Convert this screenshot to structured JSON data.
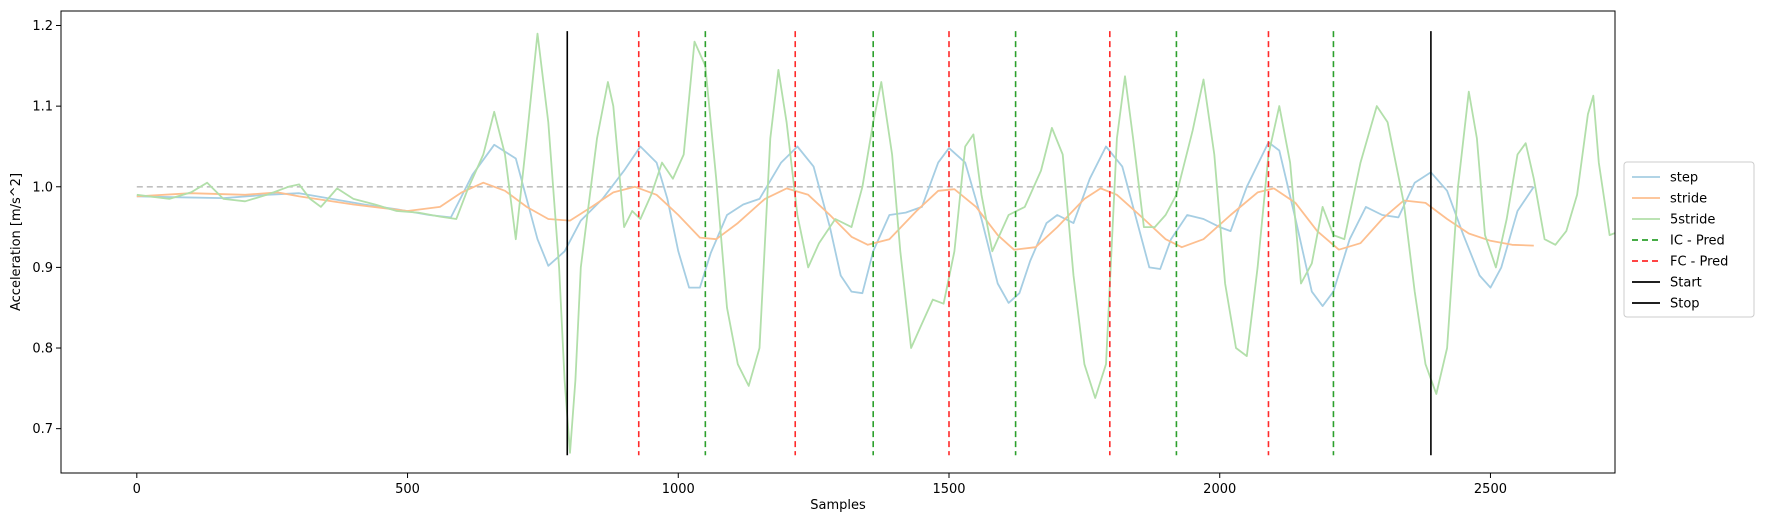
{
  "chart_data": {
    "type": "line",
    "xlabel": "Samples",
    "ylabel": "Acceleration [m/s^2]",
    "xlim": [
      -140,
      2730
    ],
    "ylim": [
      0.645,
      1.218
    ],
    "xticks": [
      0,
      500,
      1000,
      1500,
      2000,
      2500
    ],
    "yticks": [
      0.7,
      0.8,
      0.9,
      1.0,
      1.1,
      1.2
    ],
    "xtick_labels": [
      "0",
      "500",
      "1000",
      "1500",
      "2000",
      "2500"
    ],
    "ytick_labels": [
      "0.7",
      "0.8",
      "0.9",
      "1.0",
      "1.1",
      "1.2"
    ],
    "grid": false,
    "legend_position": "right",
    "reference_line": {
      "y": 1.0,
      "x_range": [
        0,
        2580
      ],
      "color": "#c0c0c0",
      "dashed": true
    },
    "series": [
      {
        "name": "step",
        "color": "#a6cee3",
        "points": [
          [
            0,
            0.988
          ],
          [
            80,
            0.987
          ],
          [
            160,
            0.986
          ],
          [
            240,
            0.99
          ],
          [
            300,
            0.992
          ],
          [
            360,
            0.985
          ],
          [
            420,
            0.978
          ],
          [
            480,
            0.972
          ],
          [
            540,
            0.965
          ],
          [
            580,
            0.962
          ],
          [
            620,
            1.015
          ],
          [
            660,
            1.052
          ],
          [
            700,
            1.035
          ],
          [
            740,
            0.935
          ],
          [
            760,
            0.902
          ],
          [
            790,
            0.92
          ],
          [
            820,
            0.958
          ],
          [
            860,
            0.985
          ],
          [
            900,
            1.02
          ],
          [
            930,
            1.05
          ],
          [
            960,
            1.03
          ],
          [
            980,
            0.985
          ],
          [
            1000,
            0.92
          ],
          [
            1020,
            0.875
          ],
          [
            1040,
            0.875
          ],
          [
            1060,
            0.918
          ],
          [
            1090,
            0.965
          ],
          [
            1120,
            0.978
          ],
          [
            1150,
            0.985
          ],
          [
            1190,
            1.03
          ],
          [
            1220,
            1.05
          ],
          [
            1250,
            1.025
          ],
          [
            1280,
            0.95
          ],
          [
            1300,
            0.89
          ],
          [
            1320,
            0.87
          ],
          [
            1340,
            0.868
          ],
          [
            1360,
            0.92
          ],
          [
            1390,
            0.965
          ],
          [
            1420,
            0.968
          ],
          [
            1450,
            0.975
          ],
          [
            1480,
            1.03
          ],
          [
            1500,
            1.048
          ],
          [
            1530,
            1.03
          ],
          [
            1560,
            0.96
          ],
          [
            1590,
            0.88
          ],
          [
            1610,
            0.856
          ],
          [
            1630,
            0.868
          ],
          [
            1650,
            0.908
          ],
          [
            1680,
            0.955
          ],
          [
            1700,
            0.965
          ],
          [
            1730,
            0.955
          ],
          [
            1760,
            1.01
          ],
          [
            1790,
            1.05
          ],
          [
            1820,
            1.025
          ],
          [
            1850,
            0.95
          ],
          [
            1870,
            0.9
          ],
          [
            1890,
            0.898
          ],
          [
            1910,
            0.935
          ],
          [
            1940,
            0.965
          ],
          [
            1970,
            0.96
          ],
          [
            2000,
            0.95
          ],
          [
            2020,
            0.945
          ],
          [
            2050,
            1.0
          ],
          [
            2090,
            1.055
          ],
          [
            2110,
            1.045
          ],
          [
            2140,
            0.96
          ],
          [
            2170,
            0.87
          ],
          [
            2190,
            0.852
          ],
          [
            2210,
            0.87
          ],
          [
            2240,
            0.935
          ],
          [
            2270,
            0.975
          ],
          [
            2300,
            0.965
          ],
          [
            2330,
            0.962
          ],
          [
            2360,
            1.005
          ],
          [
            2390,
            1.018
          ],
          [
            2420,
            0.995
          ],
          [
            2450,
            0.94
          ],
          [
            2480,
            0.89
          ],
          [
            2500,
            0.875
          ],
          [
            2520,
            0.9
          ],
          [
            2550,
            0.97
          ],
          [
            2580,
            1.0
          ]
        ]
      },
      {
        "name": "stride",
        "color": "#fdbf8f",
        "points": [
          [
            0,
            0.988
          ],
          [
            100,
            0.992
          ],
          [
            200,
            0.99
          ],
          [
            260,
            0.993
          ],
          [
            300,
            0.988
          ],
          [
            400,
            0.978
          ],
          [
            500,
            0.97
          ],
          [
            560,
            0.975
          ],
          [
            600,
            0.993
          ],
          [
            640,
            1.005
          ],
          [
            680,
            0.995
          ],
          [
            720,
            0.975
          ],
          [
            760,
            0.96
          ],
          [
            800,
            0.958
          ],
          [
            840,
            0.975
          ],
          [
            880,
            0.993
          ],
          [
            920,
            1.0
          ],
          [
            960,
            0.99
          ],
          [
            1000,
            0.965
          ],
          [
            1040,
            0.937
          ],
          [
            1070,
            0.935
          ],
          [
            1110,
            0.955
          ],
          [
            1160,
            0.985
          ],
          [
            1200,
            0.998
          ],
          [
            1240,
            0.99
          ],
          [
            1280,
            0.965
          ],
          [
            1320,
            0.938
          ],
          [
            1350,
            0.928
          ],
          [
            1390,
            0.935
          ],
          [
            1440,
            0.97
          ],
          [
            1480,
            0.995
          ],
          [
            1510,
            0.997
          ],
          [
            1550,
            0.975
          ],
          [
            1590,
            0.94
          ],
          [
            1620,
            0.922
          ],
          [
            1660,
            0.925
          ],
          [
            1700,
            0.95
          ],
          [
            1750,
            0.985
          ],
          [
            1780,
            0.998
          ],
          [
            1810,
            0.99
          ],
          [
            1860,
            0.96
          ],
          [
            1900,
            0.935
          ],
          [
            1930,
            0.925
          ],
          [
            1970,
            0.935
          ],
          [
            2020,
            0.965
          ],
          [
            2070,
            0.993
          ],
          [
            2100,
            0.998
          ],
          [
            2140,
            0.98
          ],
          [
            2180,
            0.945
          ],
          [
            2220,
            0.922
          ],
          [
            2260,
            0.93
          ],
          [
            2300,
            0.96
          ],
          [
            2340,
            0.983
          ],
          [
            2380,
            0.98
          ],
          [
            2420,
            0.96
          ],
          [
            2460,
            0.942
          ],
          [
            2500,
            0.933
          ],
          [
            2540,
            0.928
          ],
          [
            2580,
            0.927
          ]
        ]
      },
      {
        "name": "5stride",
        "color": "#b2dfaa",
        "points": [
          [
            0,
            0.99
          ],
          [
            60,
            0.985
          ],
          [
            100,
            0.993
          ],
          [
            130,
            1.005
          ],
          [
            160,
            0.985
          ],
          [
            200,
            0.982
          ],
          [
            240,
            0.99
          ],
          [
            280,
            1.0
          ],
          [
            300,
            1.003
          ],
          [
            320,
            0.985
          ],
          [
            340,
            0.975
          ],
          [
            370,
            0.998
          ],
          [
            400,
            0.985
          ],
          [
            440,
            0.978
          ],
          [
            480,
            0.97
          ],
          [
            520,
            0.968
          ],
          [
            560,
            0.963
          ],
          [
            590,
            0.96
          ],
          [
            610,
            0.995
          ],
          [
            640,
            1.04
          ],
          [
            660,
            1.093
          ],
          [
            680,
            1.04
          ],
          [
            700,
            0.935
          ],
          [
            720,
            1.06
          ],
          [
            740,
            1.19
          ],
          [
            760,
            1.08
          ],
          [
            780,
            0.9
          ],
          [
            790,
            0.76
          ],
          [
            800,
            0.67
          ],
          [
            810,
            0.76
          ],
          [
            820,
            0.9
          ],
          [
            850,
            1.06
          ],
          [
            870,
            1.13
          ],
          [
            880,
            1.1
          ],
          [
            900,
            0.95
          ],
          [
            915,
            0.97
          ],
          [
            930,
            0.96
          ],
          [
            950,
            0.99
          ],
          [
            970,
            1.03
          ],
          [
            990,
            1.01
          ],
          [
            1010,
            1.04
          ],
          [
            1030,
            1.18
          ],
          [
            1050,
            1.15
          ],
          [
            1070,
            1.01
          ],
          [
            1090,
            0.85
          ],
          [
            1110,
            0.78
          ],
          [
            1130,
            0.753
          ],
          [
            1150,
            0.8
          ],
          [
            1170,
            1.06
          ],
          [
            1185,
            1.145
          ],
          [
            1200,
            1.08
          ],
          [
            1220,
            0.965
          ],
          [
            1240,
            0.9
          ],
          [
            1260,
            0.93
          ],
          [
            1290,
            0.96
          ],
          [
            1320,
            0.95
          ],
          [
            1340,
            1.0
          ],
          [
            1360,
            1.08
          ],
          [
            1375,
            1.13
          ],
          [
            1395,
            1.04
          ],
          [
            1410,
            0.92
          ],
          [
            1430,
            0.8
          ],
          [
            1450,
            0.83
          ],
          [
            1470,
            0.86
          ],
          [
            1490,
            0.855
          ],
          [
            1510,
            0.92
          ],
          [
            1530,
            1.05
          ],
          [
            1545,
            1.065
          ],
          [
            1560,
            0.99
          ],
          [
            1580,
            0.92
          ],
          [
            1610,
            0.965
          ],
          [
            1640,
            0.975
          ],
          [
            1670,
            1.02
          ],
          [
            1690,
            1.073
          ],
          [
            1710,
            1.04
          ],
          [
            1730,
            0.89
          ],
          [
            1750,
            0.78
          ],
          [
            1770,
            0.738
          ],
          [
            1790,
            0.78
          ],
          [
            1810,
            1.06
          ],
          [
            1825,
            1.137
          ],
          [
            1840,
            1.06
          ],
          [
            1860,
            0.95
          ],
          [
            1880,
            0.95
          ],
          [
            1900,
            0.965
          ],
          [
            1920,
            0.99
          ],
          [
            1950,
            1.07
          ],
          [
            1970,
            1.133
          ],
          [
            1990,
            1.04
          ],
          [
            2010,
            0.88
          ],
          [
            2030,
            0.8
          ],
          [
            2050,
            0.79
          ],
          [
            2070,
            0.9
          ],
          [
            2090,
            1.04
          ],
          [
            2110,
            1.1
          ],
          [
            2130,
            1.03
          ],
          [
            2150,
            0.88
          ],
          [
            2170,
            0.905
          ],
          [
            2190,
            0.975
          ],
          [
            2210,
            0.94
          ],
          [
            2230,
            0.935
          ],
          [
            2260,
            1.03
          ],
          [
            2290,
            1.1
          ],
          [
            2310,
            1.08
          ],
          [
            2340,
            0.98
          ],
          [
            2360,
            0.87
          ],
          [
            2380,
            0.78
          ],
          [
            2400,
            0.743
          ],
          [
            2420,
            0.8
          ],
          [
            2440,
            1.0
          ],
          [
            2460,
            1.118
          ],
          [
            2475,
            1.06
          ],
          [
            2490,
            0.94
          ],
          [
            2510,
            0.9
          ],
          [
            2530,
            0.96
          ],
          [
            2550,
            1.04
          ],
          [
            2565,
            1.054
          ],
          [
            2580,
            1.01
          ],
          [
            2600,
            0.935
          ],
          [
            2620,
            0.928
          ],
          [
            2640,
            0.945
          ],
          [
            2660,
            0.99
          ],
          [
            2680,
            1.09
          ],
          [
            2690,
            1.113
          ],
          [
            2700,
            1.03
          ],
          [
            2720,
            0.94
          ],
          [
            2740,
            0.945
          ],
          [
            2760,
            0.96
          ]
        ]
      }
    ],
    "vertical_lines": {
      "ic_pred": {
        "name": "IC - Pred",
        "color": "#2ca02c",
        "dashed": true,
        "x": [
          1050,
          1360,
          1623,
          1920,
          2210
        ],
        "y_range": [
          0.667,
          1.193
        ]
      },
      "fc_pred": {
        "name": "FC - Pred",
        "color": "#ff2a2a",
        "dashed": true,
        "x": [
          927,
          1216,
          1500,
          1797,
          2090
        ],
        "y_range": [
          0.667,
          1.193
        ]
      },
      "start": {
        "name": "Start",
        "color": "#000000",
        "dashed": false,
        "x": [
          795
        ],
        "y_range": [
          0.667,
          1.193
        ]
      },
      "stop": {
        "name": "Stop",
        "color": "#000000",
        "dashed": false,
        "x": [
          2390
        ],
        "y_range": [
          0.667,
          1.193
        ]
      }
    },
    "legend": [
      {
        "label": "step",
        "color": "#a6cee3",
        "dashed": false
      },
      {
        "label": "stride",
        "color": "#fdbf8f",
        "dashed": false
      },
      {
        "label": "5stride",
        "color": "#b2dfaa",
        "dashed": false
      },
      {
        "label": "IC - Pred",
        "color": "#2ca02c",
        "dashed": true
      },
      {
        "label": "FC - Pred",
        "color": "#ff2a2a",
        "dashed": true
      },
      {
        "label": "Start",
        "color": "#000000",
        "dashed": false
      },
      {
        "label": "Stop",
        "color": "#000000",
        "dashed": false
      }
    ]
  }
}
